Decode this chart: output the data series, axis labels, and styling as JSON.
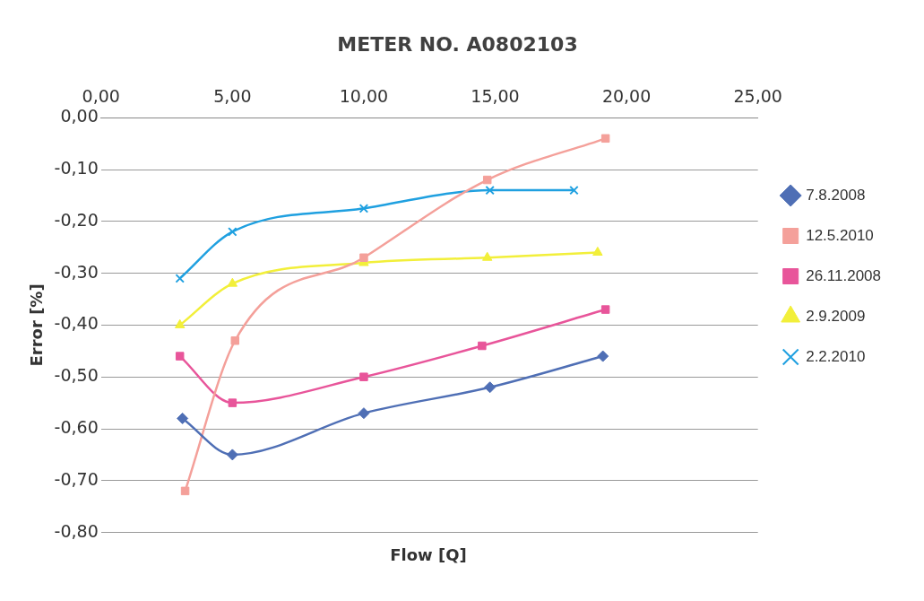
{
  "chart_data": {
    "type": "line",
    "title": "METER NO. A0802103",
    "xlabel": "Flow [Q]",
    "ylabel": "Error [%]",
    "xlim": [
      0,
      25
    ],
    "xticks": [
      {
        "value": 0,
        "label": "0,00"
      },
      {
        "value": 5,
        "label": "5,00"
      },
      {
        "value": 10,
        "label": "10,00"
      },
      {
        "value": 15,
        "label": "15,00"
      },
      {
        "value": 20,
        "label": "20,00"
      },
      {
        "value": 25,
        "label": "25,00"
      }
    ],
    "ylim": [
      -0.8,
      0
    ],
    "yticks": [
      {
        "value": -0.8,
        "label": "-0,80"
      },
      {
        "value": -0.7,
        "label": "-0,70"
      },
      {
        "value": -0.6,
        "label": "-0,60"
      },
      {
        "value": -0.5,
        "label": "-0,50"
      },
      {
        "value": -0.4,
        "label": "-0,40"
      },
      {
        "value": -0.3,
        "label": "-0,30"
      },
      {
        "value": -0.2,
        "label": "-0,20"
      },
      {
        "value": -0.1,
        "label": "-0,10"
      },
      {
        "value": 0,
        "label": "0,00"
      }
    ],
    "grid": "y",
    "legend": "right",
    "series": [
      {
        "name": "7.8.2008",
        "color": "#4f6fb5",
        "marker": "diamond",
        "x": [
          3.1,
          5,
          10,
          14.8,
          19.1
        ],
        "values": [
          -0.58,
          -0.65,
          -0.57,
          -0.52,
          -0.46
        ]
      },
      {
        "name": "12.5.2010",
        "color": "#f4a09a",
        "marker": "square",
        "x": [
          3.2,
          5.1,
          10,
          14.7,
          19.2
        ],
        "values": [
          -0.72,
          -0.43,
          -0.27,
          -0.12,
          -0.04
        ]
      },
      {
        "name": "26.11.2008",
        "color": "#e8559a",
        "marker": "square",
        "x": [
          3,
          5,
          10,
          14.5,
          19.2
        ],
        "values": [
          -0.46,
          -0.55,
          -0.5,
          -0.44,
          -0.37
        ]
      },
      {
        "name": "2.9.2009",
        "color": "#f2ef3a",
        "marker": "triangle",
        "x": [
          3,
          5,
          10,
          14.7,
          18.9
        ],
        "values": [
          -0.4,
          -0.32,
          -0.28,
          -0.27,
          -0.26
        ]
      },
      {
        "name": "2.2.2010",
        "color": "#1fa0e0",
        "marker": "cross",
        "x": [
          3,
          5,
          10,
          14.8,
          18
        ],
        "values": [
          -0.31,
          -0.22,
          -0.175,
          -0.14,
          -0.14
        ]
      }
    ]
  }
}
